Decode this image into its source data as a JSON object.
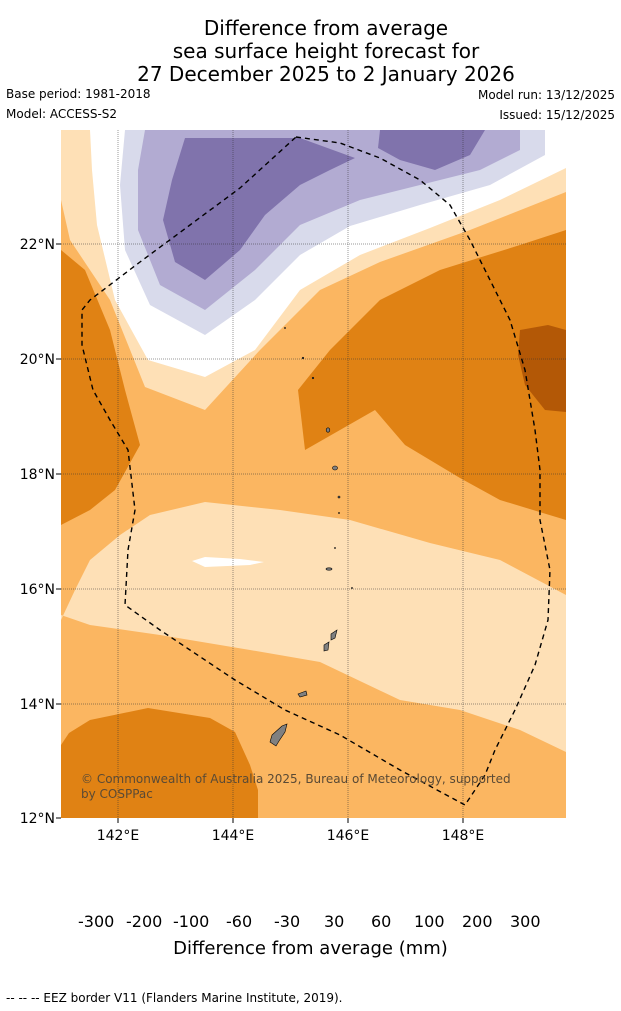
{
  "header": {
    "title_line1": "Difference from average",
    "title_line2": "sea surface height forecast for",
    "title_line3": "27 December 2025 to 2 January 2026",
    "base_period": "Base period: 1981-2018",
    "model": "Model: ACCESS-S2",
    "model_run": "Model run: 13/12/2025",
    "issued": "Issued: 15/12/2025"
  },
  "map": {
    "lon_ticks": [
      "142°E",
      "144°E",
      "146°E",
      "148°E"
    ],
    "lat_ticks": [
      "22°N",
      "20°N",
      "18°N",
      "16°N",
      "14°N",
      "12°N"
    ],
    "copyright": "© Commonwealth of Australia 2025, Bureau of Meteorology, supported by COSPPac",
    "colors": {
      "neg300": "#2d0a4e",
      "neg200": "#542788",
      "neg100": "#8073ac",
      "neg60": "#b2abd2",
      "neg30": "#d8daeb",
      "zero": "#ffffff",
      "pos30": "#fee0b6",
      "pos60": "#fbb661",
      "pos100": "#e08214",
      "pos200": "#b35806",
      "pos300": "#7f3b08",
      "land": "#808080"
    }
  },
  "colorbar": {
    "labels": [
      "-300",
      "-200",
      "-100",
      "-60",
      "-30",
      "30",
      "60",
      "100",
      "200",
      "300"
    ],
    "title": "Difference from average (mm)"
  },
  "footer": {
    "note": "--  --  -- EEZ border V11 (Flanders Marine Institute, 2019)."
  }
}
